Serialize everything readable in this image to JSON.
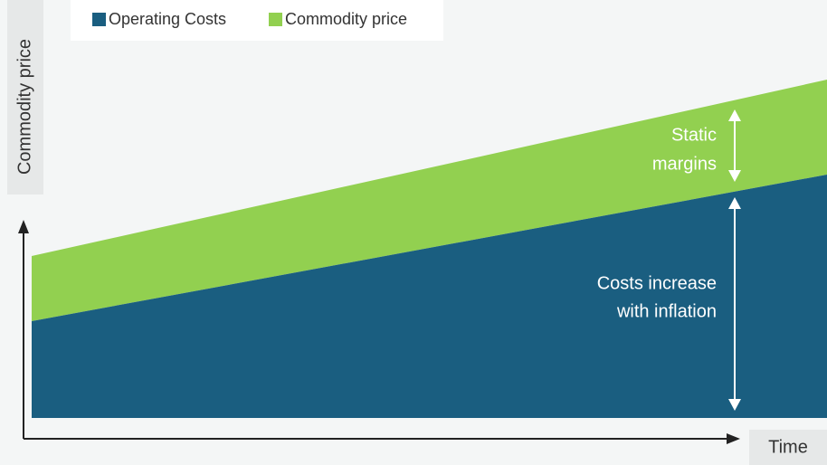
{
  "legend": {
    "items": [
      {
        "label": "Operating Costs",
        "color": "#1a5e80"
      },
      {
        "label": "Commodity price",
        "color": "#92d050"
      }
    ]
  },
  "axes": {
    "y_label": "Commodity price",
    "x_label": "Time"
  },
  "annotations": [
    {
      "lines": [
        "Static",
        "margins"
      ]
    },
    {
      "lines": [
        "Costs increase",
        "with inflation"
      ]
    }
  ]
}
